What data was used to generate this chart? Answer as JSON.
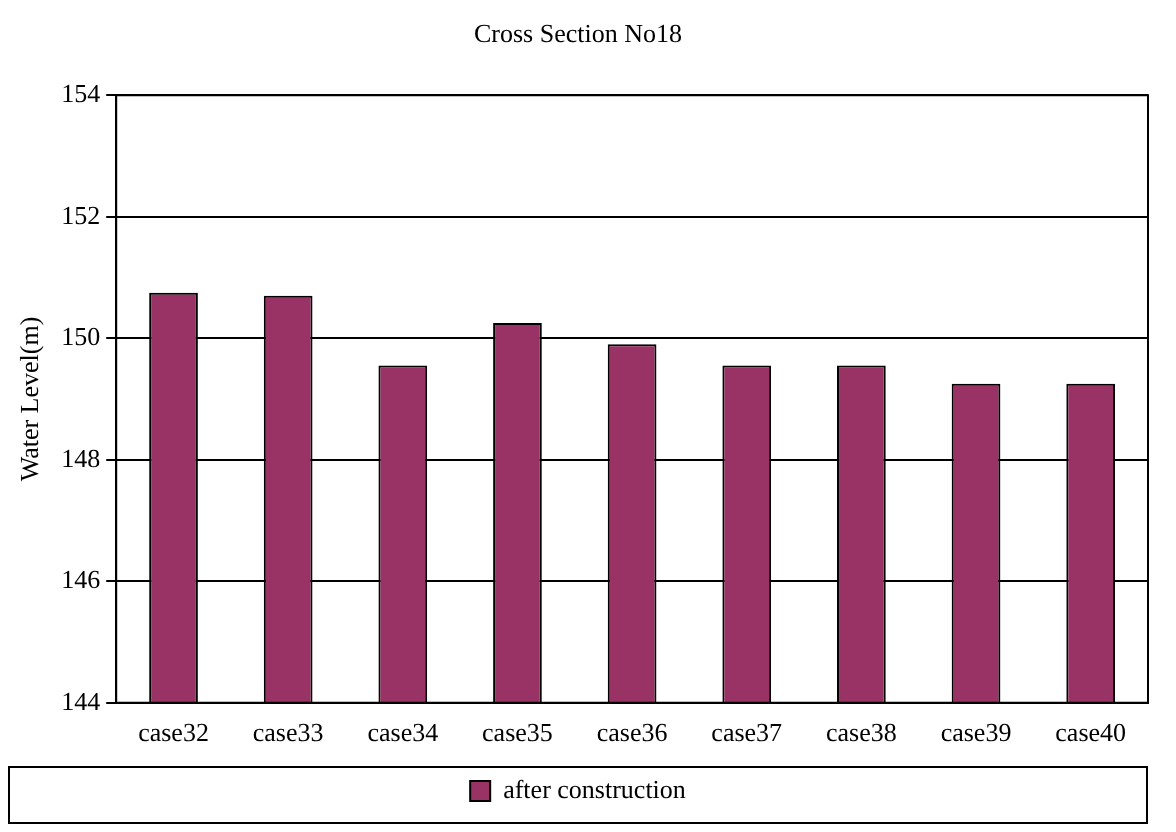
{
  "chart_data": {
    "type": "bar",
    "title": "Cross Section No18",
    "ylabel": "Water Level(m)",
    "categories": [
      "case32",
      "case33",
      "case34",
      "case35",
      "case36",
      "case37",
      "case38",
      "case39",
      "case40"
    ],
    "series": [
      {
        "name": "after construction",
        "color": "#993366",
        "values": [
          150.75,
          150.7,
          149.55,
          150.25,
          149.9,
          149.55,
          149.55,
          149.25,
          149.25
        ]
      }
    ],
    "ylim": [
      144,
      154
    ],
    "yticks": [
      144,
      146,
      148,
      150,
      152,
      154
    ],
    "grid": "y",
    "legend": "bottom"
  }
}
